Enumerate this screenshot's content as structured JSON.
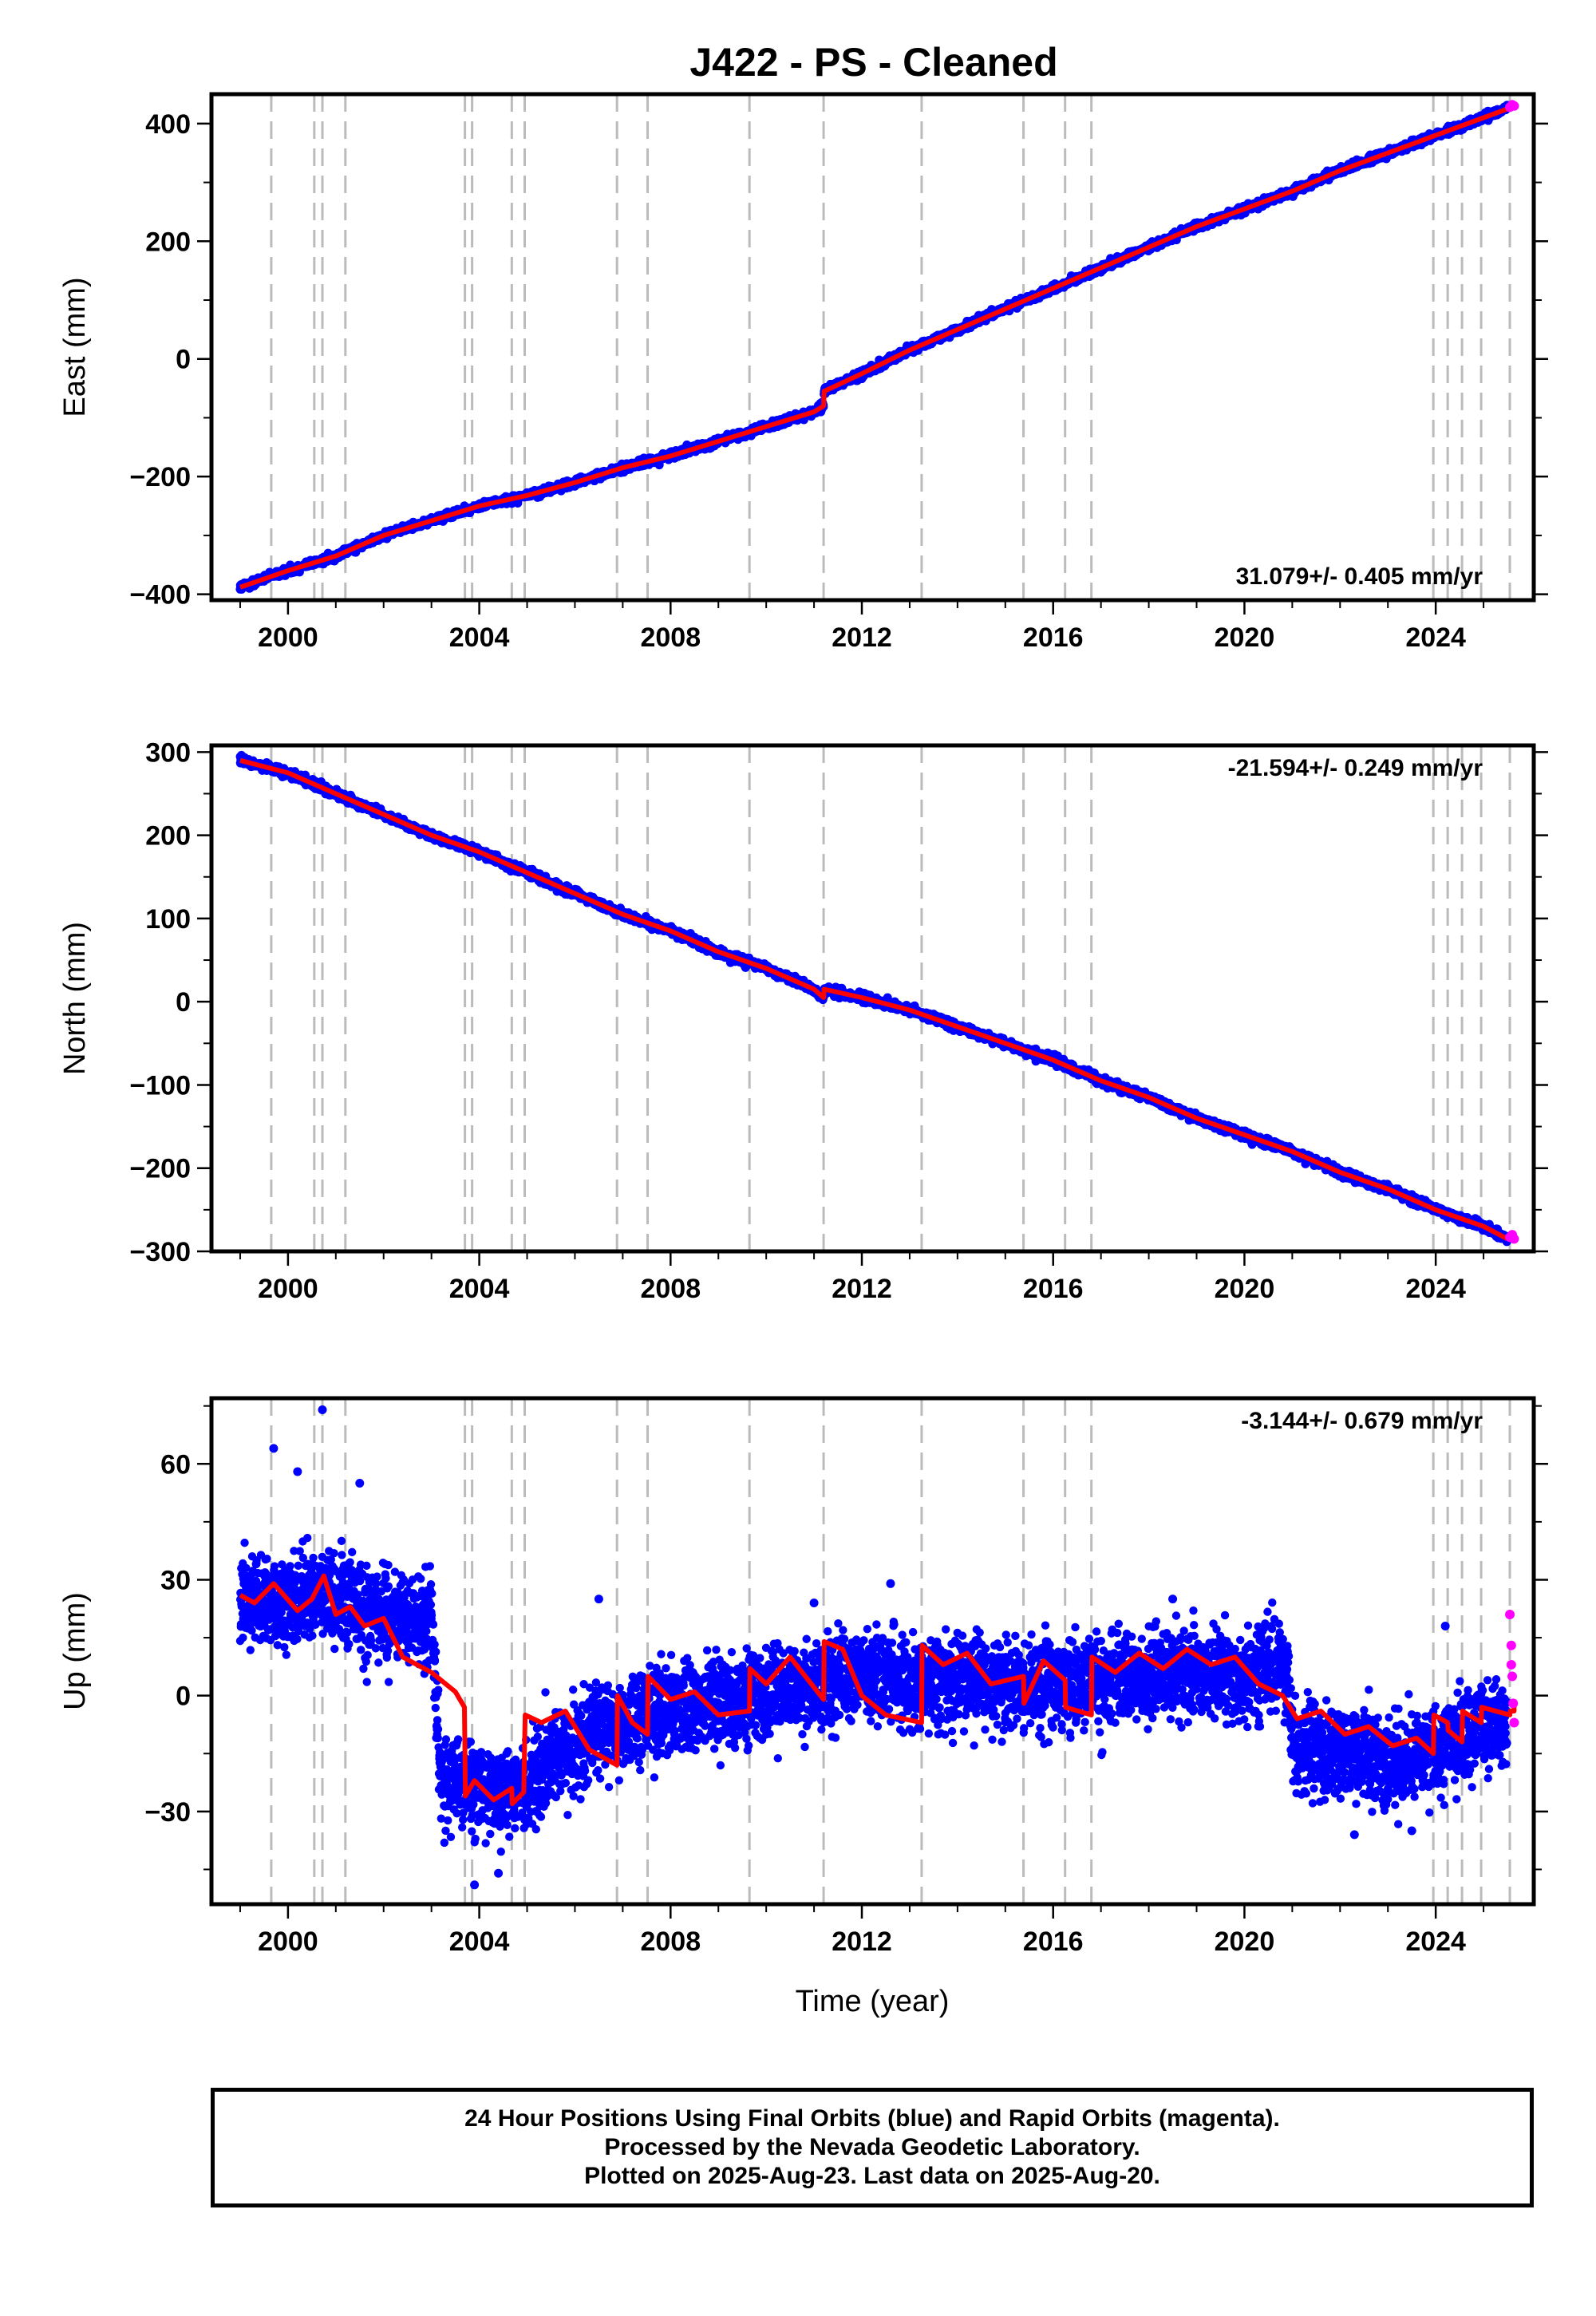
{
  "title": "J422  - PS - Cleaned",
  "colors": {
    "final": "#0000ff",
    "rapid": "#ff00ff",
    "model": "#ff0000",
    "event_lines": "#bbbbbb"
  },
  "xaxis": {
    "label": "Time (year)",
    "range": [
      1998.4,
      2026.05
    ],
    "ticks": [
      "2000",
      "2004",
      "2008",
      "2012",
      "2016",
      "2020",
      "2024"
    ],
    "tick_values": [
      2000,
      2004,
      2008,
      2012,
      2016,
      2020,
      2024
    ]
  },
  "event_lines": [
    1999.65,
    2000.55,
    2000.72,
    2001.2,
    2003.7,
    2003.85,
    2004.68,
    2004.95,
    2006.88,
    2007.52,
    2009.65,
    2011.2,
    2013.25,
    2015.38,
    2016.25,
    2016.8,
    2023.95,
    2024.25,
    2024.55,
    2024.95,
    2025.55
  ],
  "chart_data": [
    {
      "type": "scatter",
      "panel": "East",
      "ylabel": "East (mm)",
      "ylim": [
        -410,
        450
      ],
      "yticks": [
        "400",
        "200",
        "0",
        "−200",
        "−400"
      ],
      "ytick_values": [
        400,
        200,
        0,
        -200,
        -400
      ],
      "rate_label": "31.079+/- 0.405 mm/yr",
      "rate_position": "bottom-right",
      "series": [
        {
          "name": "Final Orbits (blue)",
          "x": [
            1999.0,
            2000.0,
            2001.0,
            2002.0,
            2003.0,
            2004.0,
            2005.0,
            2006.0,
            2007.0,
            2008.0,
            2009.0,
            2010.0,
            2011.0,
            2011.2,
            2011.21,
            2012.0,
            2013.0,
            2014.0,
            2015.0,
            2016.0,
            2017.0,
            2018.0,
            2019.0,
            2020.0,
            2021.0,
            2022.0,
            2023.0,
            2024.0,
            2025.0,
            2025.5
          ],
          "y": [
            -388,
            -360,
            -335,
            -300,
            -275,
            -250,
            -232,
            -210,
            -185,
            -165,
            -140,
            -115,
            -90,
            -80,
            -55,
            -25,
            15,
            50,
            85,
            120,
            155,
            190,
            225,
            255,
            285,
            320,
            350,
            380,
            410,
            425
          ],
          "scatter_mm": 4.5
        },
        {
          "name": "Rapid Orbits (magenta)",
          "x": [
            2025.55,
            2025.6,
            2025.64
          ],
          "y": [
            428,
            432,
            430
          ],
          "scatter_mm": 3
        }
      ]
    },
    {
      "type": "scatter",
      "panel": "North",
      "ylabel": "North (mm)",
      "ylim": [
        -300,
        308
      ],
      "yticks": [
        "300",
        "200",
        "100",
        "0",
        "−100",
        "−200",
        "−300"
      ],
      "ytick_values": [
        300,
        200,
        100,
        0,
        -100,
        -200,
        -300
      ],
      "rate_label": "-21.594+/- 0.249 mm/yr",
      "rate_position": "top-right",
      "series": [
        {
          "name": "Final Orbits (blue)",
          "x": [
            1999.0,
            2000.0,
            2001.0,
            2002.0,
            2003.0,
            2004.0,
            2005.0,
            2006.0,
            2007.0,
            2008.0,
            2009.0,
            2010.0,
            2011.0,
            2011.2,
            2011.21,
            2012.0,
            2013.0,
            2014.0,
            2015.0,
            2016.0,
            2017.0,
            2018.0,
            2019.0,
            2020.0,
            2021.0,
            2022.0,
            2023.0,
            2024.0,
            2025.0,
            2025.5
          ],
          "y": [
            290,
            275,
            250,
            225,
            200,
            180,
            155,
            130,
            105,
            85,
            60,
            40,
            15,
            5,
            15,
            5,
            -10,
            -30,
            -50,
            -70,
            -95,
            -115,
            -140,
            -160,
            -180,
            -205,
            -225,
            -250,
            -270,
            -285
          ],
          "scatter_mm": 3.5
        },
        {
          "name": "Rapid Orbits (magenta)",
          "x": [
            2025.55,
            2025.6,
            2025.64
          ],
          "y": [
            -283,
            -280,
            -285
          ],
          "scatter_mm": 2
        }
      ]
    },
    {
      "type": "scatter",
      "panel": "Up",
      "ylabel": "Up (mm)",
      "ylim": [
        -54,
        77
      ],
      "yticks": [
        "60",
        "30",
        "0",
        "−30"
      ],
      "ytick_values": [
        60,
        30,
        0,
        -30
      ],
      "rate_label": "-3.144+/- 0.679 mm/yr",
      "rate_position": "top-right",
      "series": [
        {
          "name": "Final Orbits (blue)",
          "x": [
            1999.0,
            1999.5,
            2000.0,
            2000.5,
            2001.0,
            2001.5,
            2002.0,
            2002.5,
            2003.0,
            2003.2,
            2004.0,
            2004.5,
            2005.0,
            2006.0,
            2007.0,
            2008.0,
            2009.0,
            2010.0,
            2011.0,
            2012.0,
            2013.0,
            2014.0,
            2015.0,
            2016.0,
            2017.0,
            2018.0,
            2019.0,
            2020.0,
            2020.9,
            2021.0,
            2022.0,
            2023.0,
            2024.0,
            2025.0,
            2025.5
          ],
          "y": [
            24,
            26,
            23,
            27,
            24,
            22,
            21,
            19,
            20,
            -22,
            -24,
            -25,
            -22,
            -12,
            -7,
            -4,
            -2,
            0,
            3,
            5,
            4,
            4,
            3,
            3,
            4,
            5,
            6,
            6,
            7,
            -14,
            -15,
            -17,
            -14,
            -8,
            -6
          ],
          "scatter_mm": 8,
          "outliers": [
            [
              1999.7,
              64
            ],
            [
              2000.72,
              74
            ],
            [
              2003.9,
              -49
            ],
            [
              2004.4,
              -46
            ],
            [
              2000.2,
              58
            ],
            [
              2001.5,
              55
            ],
            [
              2012.6,
              29
            ],
            [
              2011.0,
              24
            ],
            [
              2006.5,
              25
            ],
            [
              2018.5,
              25
            ],
            [
              2022.3,
              -36
            ],
            [
              2023.5,
              -35
            ],
            [
              2024.2,
              18
            ]
          ]
        },
        {
          "name": "Rapid Orbits (magenta)",
          "x": [
            2025.55,
            2025.58,
            2025.6,
            2025.62,
            2025.64,
            2025.58
          ],
          "y": [
            21,
            13,
            5,
            -2,
            -7,
            8
          ],
          "scatter_mm": 0
        }
      ],
      "model": {
        "x": [
          1999.0,
          1999.3,
          1999.7,
          2000.2,
          2000.5,
          2000.75,
          2001.0,
          2001.3,
          2001.6,
          2002.0,
          2002.4,
          2003.0,
          2003.5,
          2003.69,
          2003.71,
          2003.9,
          2004.3,
          2004.68,
          2004.69,
          2004.93,
          2004.96,
          2005.3,
          2005.8,
          2006.3,
          2006.88,
          2006.89,
          2007.2,
          2007.52,
          2007.53,
          2008.0,
          2008.5,
          2009.0,
          2009.65,
          2009.66,
          2010.0,
          2010.5,
          2011.2,
          2011.21,
          2011.6,
          2012.0,
          2012.5,
          2013.25,
          2013.26,
          2013.7,
          2014.2,
          2014.7,
          2015.38,
          2015.39,
          2015.8,
          2016.25,
          2016.26,
          2016.8,
          2016.81,
          2017.3,
          2017.8,
          2018.3,
          2018.8,
          2019.3,
          2019.8,
          2020.3,
          2020.8,
          2021.1,
          2021.6,
          2022.1,
          2022.6,
          2023.1,
          2023.6,
          2023.95,
          2023.96,
          2024.25,
          2024.26,
          2024.55,
          2024.56,
          2024.95,
          2024.96,
          2025.55,
          2025.56,
          2025.64
        ],
        "y": [
          26,
          24,
          29,
          22,
          25,
          31,
          21,
          23,
          18,
          20,
          10,
          6,
          1,
          -3,
          -26,
          -22,
          -27,
          -24,
          -28,
          -25,
          -5,
          -7,
          -4,
          -14,
          -18,
          0,
          -7,
          -10,
          5,
          -1,
          1,
          -5,
          -4,
          7,
          3,
          10,
          -1,
          14,
          12,
          0,
          -5,
          -7,
          13,
          8,
          11,
          3,
          5,
          -2,
          9,
          4,
          -3,
          -5,
          10,
          6,
          11,
          7,
          12,
          8,
          10,
          3,
          0,
          -6,
          -4,
          -10,
          -8,
          -13,
          -11,
          -15,
          -5,
          -7,
          -9,
          -12,
          -4,
          -7,
          -3,
          -5,
          -4,
          -4
        ],
        "x_right": [
          2025.64
        ],
        "y_right": [
          -1
        ]
      }
    }
  ],
  "caption": {
    "line1": "24 Hour Positions Using Final Orbits (blue) and Rapid Orbits (magenta).",
    "line2": "Processed by the Nevada Geodetic Laboratory.",
    "line3": "Plotted on 2025-Aug-23. Last data on 2025-Aug-20."
  }
}
